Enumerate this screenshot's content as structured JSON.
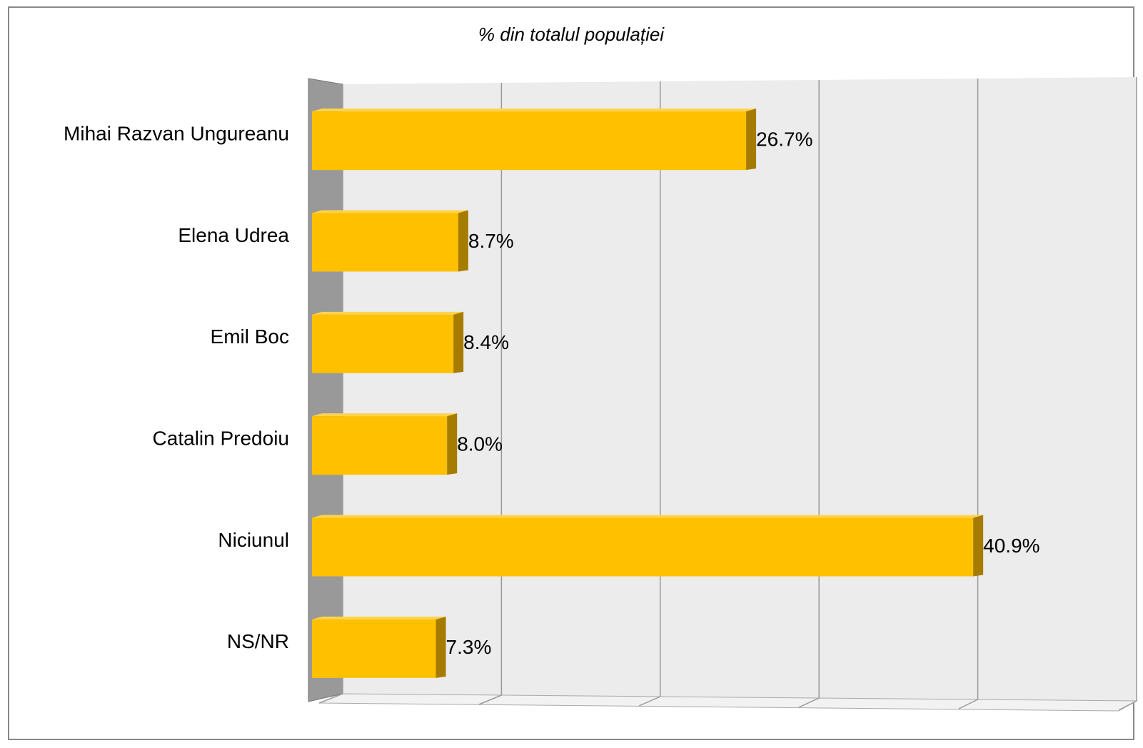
{
  "chart_data": {
    "type": "bar",
    "orientation": "horizontal",
    "title": "% din totalul populației",
    "categories": [
      "Mihai Razvan Ungureanu",
      "Elena Udrea",
      "Emil Boc",
      "Catalin Predoiu",
      "Niciunul",
      "NS/NR"
    ],
    "values": [
      26.7,
      8.7,
      8.4,
      8.0,
      40.9,
      7.3
    ],
    "value_labels": [
      "26.7%",
      "8.7%",
      "8.4%",
      "8.0%",
      "40.9%",
      "7.3%"
    ],
    "color": "#ffc000",
    "xlim": [
      0,
      50
    ],
    "xticks": [
      0,
      10,
      20,
      30,
      40,
      50
    ],
    "grid": true
  }
}
